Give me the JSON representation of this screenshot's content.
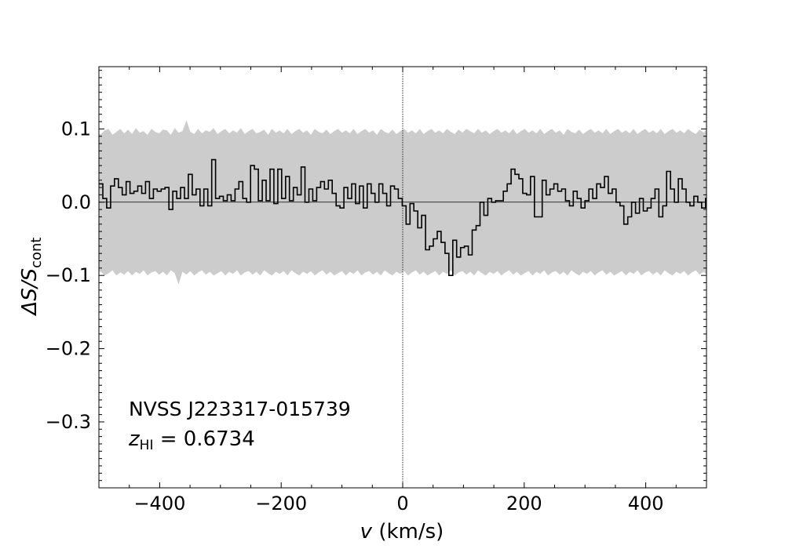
{
  "chart_data": {
    "type": "line",
    "xlabel_var": "v",
    "xlabel_unit": " (km/s)",
    "ylabel_main": "ΔS/S",
    "ylabel_sub": "cont",
    "xlim": [
      -500,
      500
    ],
    "ylim": [
      -0.39,
      0.185
    ],
    "x_ticks": [
      -400,
      -200,
      0,
      200,
      400
    ],
    "x_tick_labels": [
      "−400",
      "−200",
      "0",
      "200",
      "400"
    ],
    "y_ticks": [
      0.1,
      0.0,
      -0.1,
      -0.2,
      -0.3
    ],
    "y_tick_labels": [
      "0.1",
      "0.0",
      "−0.1",
      "−0.2",
      "−0.3"
    ],
    "annotation_source": "NVSS J223317-015739",
    "annotation_z_var": "z",
    "annotation_z_sub": "HI",
    "annotation_z_value": " = 0.6734",
    "reference_lines": {
      "y": 0.0,
      "x": 0
    },
    "channel_width": 6.4,
    "x_start": -500,
    "spectrum": [
      0.025,
      0.005,
      -0.008,
      0.022,
      0.032,
      0.02,
      0.01,
      0.028,
      0.012,
      0.015,
      0.022,
      0.012,
      0.028,
      0.005,
      0.018,
      0.015,
      0.018,
      0.02,
      -0.01,
      0.015,
      0.005,
      0.02,
      0.005,
      0.038,
      0.01,
      0.018,
      -0.005,
      0.018,
      -0.005,
      0.058,
      0.005,
      0.008,
      0.002,
      0.01,
      0.002,
      0.018,
      0.028,
      0.005,
      0.0,
      0.05,
      0.045,
      0.002,
      0.03,
      0.002,
      0.045,
      -0.002,
      0.045,
      0.005,
      0.035,
      0.002,
      0.02,
      0.01,
      0.048,
      0.0,
      0.018,
      0.002,
      0.02,
      0.028,
      0.018,
      0.03,
      0.012,
      -0.005,
      -0.008,
      0.02,
      0.005,
      0.025,
      -0.002,
      0.022,
      -0.008,
      0.025,
      0.012,
      0.0,
      0.025,
      0.012,
      -0.005,
      0.022,
      0.018,
      0.005,
      -0.005,
      -0.03,
      -0.002,
      -0.012,
      -0.035,
      -0.018,
      -0.065,
      -0.06,
      -0.05,
      -0.04,
      -0.055,
      -0.07,
      -0.1,
      -0.052,
      -0.075,
      -0.062,
      -0.06,
      -0.072,
      -0.038,
      -0.032,
      0.0,
      -0.018,
      0.005,
      0.0,
      0.002,
      0.002,
      0.015,
      0.025,
      0.045,
      0.038,
      0.032,
      0.012,
      0.01,
      0.035,
      -0.02,
      -0.02,
      0.03,
      0.01,
      0.018,
      0.025,
      0.015,
      0.018,
      0.002,
      -0.005,
      0.015,
      0.005,
      -0.008,
      0.002,
      0.018,
      0.005,
      0.025,
      0.02,
      0.035,
      0.012,
      0.018,
      0.0,
      -0.005,
      -0.03,
      -0.02,
      0.0,
      -0.015,
      0.005,
      -0.012,
      -0.008,
      0.005,
      0.018,
      -0.02,
      -0.005,
      0.042,
      0.018,
      0.0,
      0.032,
      0.018,
      0.0,
      -0.005,
      0.008,
      0.0,
      -0.008,
      0.005,
      -0.002,
      -0.008,
      -0.002,
      0.025,
      -0.01,
      -0.025,
      0.0,
      -0.005,
      0.02,
      -0.008,
      0.015,
      -0.01,
      -0.005,
      0.005,
      0.015,
      0.002
    ],
    "noise_upper": [
      0.093,
      0.098,
      0.1,
      0.092,
      0.096,
      0.1,
      0.094,
      0.099,
      0.093,
      0.101,
      0.095,
      0.097,
      0.092,
      0.1,
      0.096,
      0.094,
      0.099,
      0.098,
      0.092,
      0.101,
      0.095,
      0.097,
      0.112,
      0.096,
      0.093,
      0.1,
      0.094,
      0.098,
      0.096,
      0.101,
      0.093,
      0.097,
      0.1,
      0.094,
      0.098,
      0.095,
      0.101,
      0.093,
      0.097,
      0.1,
      0.094,
      0.096,
      0.099,
      0.092,
      0.1,
      0.095,
      0.098,
      0.094,
      0.1,
      0.093,
      0.097,
      0.1,
      0.095,
      0.098,
      0.092,
      0.1,
      0.096,
      0.094,
      0.099,
      0.093,
      0.097,
      0.1,
      0.095,
      0.098,
      0.094,
      0.1,
      0.093,
      0.097,
      0.1,
      0.095,
      0.098,
      0.092,
      0.1,
      0.096,
      0.094,
      0.099,
      0.093,
      0.097,
      0.1,
      0.095,
      0.098,
      0.094,
      0.1,
      0.093,
      0.097,
      0.1,
      0.095,
      0.098,
      0.094,
      0.1,
      0.096,
      0.093,
      0.099,
      0.095,
      0.1,
      0.097,
      0.094,
      0.1,
      0.095,
      0.098,
      0.093,
      0.097,
      0.1,
      0.095,
      0.098,
      0.094,
      0.1,
      0.093,
      0.097,
      0.1,
      0.095,
      0.098,
      0.094,
      0.1,
      0.093,
      0.097,
      0.1,
      0.095,
      0.098,
      0.092,
      0.1,
      0.096,
      0.094,
      0.099,
      0.093,
      0.097,
      0.1,
      0.095,
      0.098,
      0.094,
      0.1,
      0.093,
      0.097,
      0.1,
      0.095,
      0.098,
      0.094,
      0.1,
      0.093,
      0.097,
      0.1,
      0.095,
      0.098,
      0.094,
      0.1,
      0.093,
      0.097,
      0.1,
      0.095,
      0.098,
      0.094,
      0.1,
      0.096,
      0.093,
      0.099,
      0.095,
      0.1,
      0.097,
      0.094,
      0.1,
      0.095,
      0.098,
      0.093,
      0.097,
      0.1,
      0.095,
      0.098,
      0.094,
      0.1,
      0.093,
      0.097,
      0.1,
      0.095
    ],
    "noise_lower": [
      -0.095,
      -0.1,
      -0.097,
      -0.093,
      -0.1,
      -0.096,
      -0.099,
      -0.094,
      -0.1,
      -0.095,
      -0.098,
      -0.093,
      -0.1,
      -0.096,
      -0.094,
      -0.099,
      -0.095,
      -0.1,
      -0.093,
      -0.097,
      -0.112,
      -0.095,
      -0.099,
      -0.094,
      -0.1,
      -0.096,
      -0.093,
      -0.099,
      -0.095,
      -0.1,
      -0.097,
      -0.094,
      -0.1,
      -0.095,
      -0.098,
      -0.093,
      -0.1,
      -0.096,
      -0.094,
      -0.099,
      -0.095,
      -0.1,
      -0.093,
      -0.097,
      -0.1,
      -0.095,
      -0.098,
      -0.094,
      -0.1,
      -0.093,
      -0.097,
      -0.1,
      -0.095,
      -0.098,
      -0.094,
      -0.1,
      -0.096,
      -0.093,
      -0.099,
      -0.095,
      -0.1,
      -0.097,
      -0.094,
      -0.1,
      -0.095,
      -0.098,
      -0.093,
      -0.1,
      -0.096,
      -0.094,
      -0.099,
      -0.095,
      -0.1,
      -0.093,
      -0.097,
      -0.1,
      -0.095,
      -0.098,
      -0.094,
      -0.1,
      -0.096,
      -0.093,
      -0.099,
      -0.095,
      -0.1,
      -0.097,
      -0.094,
      -0.1,
      -0.095,
      -0.098,
      -0.093,
      -0.1,
      -0.096,
      -0.094,
      -0.099,
      -0.095,
      -0.1,
      -0.093,
      -0.097,
      -0.1,
      -0.095,
      -0.098,
      -0.094,
      -0.1,
      -0.096,
      -0.093,
      -0.099,
      -0.095,
      -0.1,
      -0.097,
      -0.094,
      -0.1,
      -0.095,
      -0.098,
      -0.093,
      -0.1,
      -0.096,
      -0.094,
      -0.099,
      -0.095,
      -0.1,
      -0.093,
      -0.097,
      -0.1,
      -0.095,
      -0.098,
      -0.094,
      -0.1,
      -0.096,
      -0.093,
      -0.099,
      -0.095,
      -0.1,
      -0.097,
      -0.094,
      -0.1,
      -0.095,
      -0.098,
      -0.093,
      -0.1,
      -0.096,
      -0.094,
      -0.099,
      -0.095,
      -0.1,
      -0.093,
      -0.097,
      -0.1,
      -0.095,
      -0.098,
      -0.094,
      -0.1,
      -0.096,
      -0.093,
      -0.099,
      -0.095,
      -0.1,
      -0.097,
      -0.094,
      -0.1,
      -0.095,
      -0.098,
      -0.093,
      -0.1,
      -0.096,
      -0.094,
      -0.099,
      -0.095,
      -0.1,
      -0.093,
      -0.097,
      -0.1
    ]
  }
}
